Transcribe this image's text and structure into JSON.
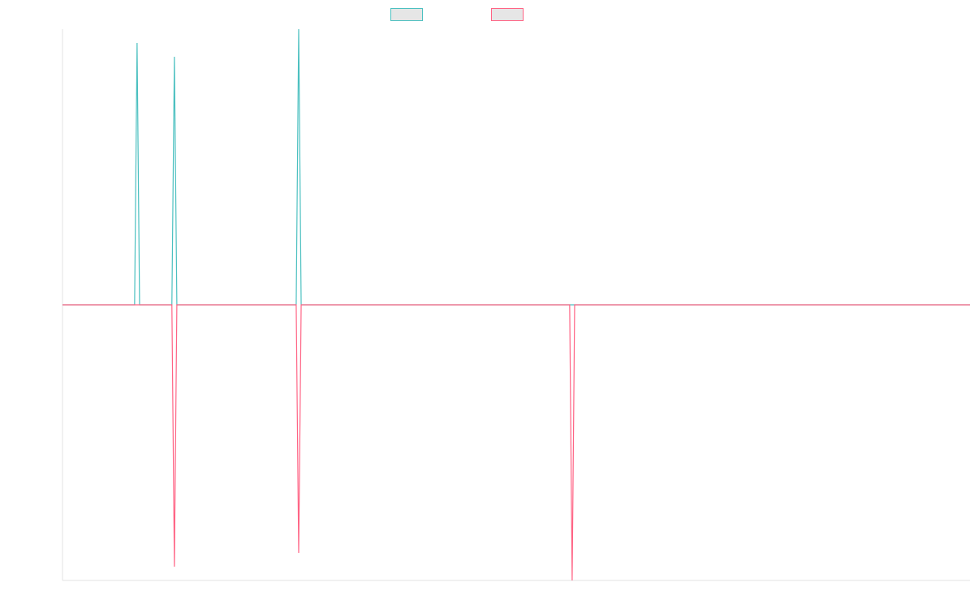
{
  "chart_data": {
    "type": "line",
    "title": "",
    "xlabel": "",
    "ylabel": "",
    "legend_position": "top-center",
    "grid": false,
    "x_count": 366,
    "ylim": [
      -1,
      1
    ],
    "baseline": 0,
    "series": [
      {
        "color": "#4bc0c0",
        "legend_fill": "#e6e6e6",
        "spikes": [
          {
            "x": 30,
            "y": 0.95
          },
          {
            "x": 45,
            "y": 0.9
          },
          {
            "x": 95,
            "y": 1.0
          }
        ]
      },
      {
        "color": "#ff6384",
        "legend_fill": "#e6e6e6",
        "spikes": [
          {
            "x": 45,
            "y": -0.95
          },
          {
            "x": 95,
            "y": -0.9
          },
          {
            "x": 205,
            "y": -1.0
          }
        ]
      }
    ]
  }
}
